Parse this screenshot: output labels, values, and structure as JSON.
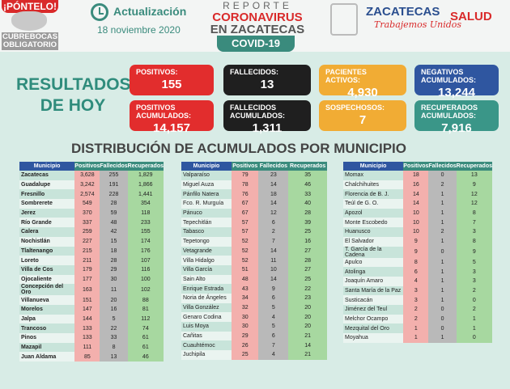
{
  "header": {
    "badge_top": "¡PÓNTELO!",
    "badge_bottom": "CUBREBOCAS OBLIGATORIO",
    "update_label": "Actualización",
    "date": "18 noviembre 2020",
    "report_1": "REPORTE",
    "report_2": "CORONAVIRUS",
    "report_3": "EN ZACATECAS",
    "covid": "COVID-19",
    "state": "ZACATECAS",
    "slogan": "Trabajemos Unidos",
    "salud": "SALUD"
  },
  "results_title": "RESULTADOS DE HOY",
  "cards": {
    "positivos": {
      "label": "POSITIVOS:",
      "value": "155"
    },
    "fallecidos": {
      "label": "FALLECIDOS:",
      "value": "13"
    },
    "activos": {
      "label": "PACIENTES ACTIVOS:",
      "value": "4,930"
    },
    "negativos": {
      "label": "NEGATIVOS ACUMULADOS:",
      "value": "13,244"
    },
    "pos_acum": {
      "label": "POSITIVOS ACUMULADOS:",
      "value": "14,157"
    },
    "fal_acum": {
      "label": "FALLECIDOS ACUMULADOS:",
      "value": "1,311"
    },
    "sospechosos": {
      "label": "SOSPECHOSOS:",
      "value": "7"
    },
    "recuperados": {
      "label": "RECUPERADOS ACUMULADOS:",
      "value": "7,916"
    }
  },
  "dist_title": "DISTRIBUCIÓN DE ACUMULADOS POR MUNICIPIO",
  "columns": [
    "Municipio",
    "Positivos",
    "Fallecidos",
    "Recuperados"
  ],
  "table1": [
    [
      "Zacatecas",
      "3,628",
      "255",
      "1,829"
    ],
    [
      "Guadalupe",
      "3,242",
      "191",
      "1,866"
    ],
    [
      "Fresnillo",
      "2,574",
      "228",
      "1,441"
    ],
    [
      "Sombrerete",
      "549",
      "28",
      "354"
    ],
    [
      "Jerez",
      "370",
      "59",
      "118"
    ],
    [
      "Río Grande",
      "337",
      "48",
      "233"
    ],
    [
      "Calera",
      "259",
      "42",
      "155"
    ],
    [
      "Nochistlán",
      "227",
      "15",
      "174"
    ],
    [
      "Tlaltenango",
      "215",
      "18",
      "176"
    ],
    [
      "Loreto",
      "211",
      "28",
      "107"
    ],
    [
      "Villa de Cos",
      "179",
      "29",
      "116"
    ],
    [
      "Ojocaliente",
      "177",
      "30",
      "100"
    ],
    [
      "Concepción del Oro",
      "163",
      "11",
      "102"
    ],
    [
      "Villanueva",
      "151",
      "20",
      "88"
    ],
    [
      "Morelos",
      "147",
      "16",
      "81"
    ],
    [
      "Jalpa",
      "144",
      "5",
      "112"
    ],
    [
      "Trancoso",
      "133",
      "22",
      "74"
    ],
    [
      "Pinos",
      "133",
      "33",
      "61"
    ],
    [
      "Mazapil",
      "111",
      "8",
      "61"
    ],
    [
      "Juan Aldama",
      "85",
      "13",
      "46"
    ]
  ],
  "table2": [
    [
      "Valparaíso",
      "79",
      "23",
      "35"
    ],
    [
      "Miguel Auza",
      "78",
      "14",
      "46"
    ],
    [
      "Pánfilo Natera",
      "76",
      "18",
      "33"
    ],
    [
      "Fco. R. Murguía",
      "67",
      "14",
      "40"
    ],
    [
      "Pánuco",
      "67",
      "12",
      "28"
    ],
    [
      "Tepechitlán",
      "57",
      "6",
      "39"
    ],
    [
      "Tabasco",
      "57",
      "2",
      "25"
    ],
    [
      "Tepetongo",
      "52",
      "7",
      "16"
    ],
    [
      "Vetagrande",
      "52",
      "14",
      "27"
    ],
    [
      "Villa Hidalgo",
      "52",
      "11",
      "28"
    ],
    [
      "Villa García",
      "51",
      "10",
      "27"
    ],
    [
      "Sain Alto",
      "48",
      "14",
      "25"
    ],
    [
      "Enrique Estrada",
      "43",
      "9",
      "22"
    ],
    [
      "Noria de Ángeles",
      "34",
      "6",
      "23"
    ],
    [
      "Villa González",
      "32",
      "5",
      "20"
    ],
    [
      "Genaro Codina",
      "30",
      "4",
      "20"
    ],
    [
      "Luis Moya",
      "30",
      "5",
      "20"
    ],
    [
      "Cañitas",
      "29",
      "6",
      "21"
    ],
    [
      "Cuauhtémoc",
      "26",
      "7",
      "14"
    ],
    [
      "Juchipila",
      "25",
      "4",
      "21"
    ]
  ],
  "table3": [
    [
      "Momax",
      "18",
      "0",
      "13"
    ],
    [
      "Chalchihuites",
      "16",
      "2",
      "9"
    ],
    [
      "Florencia de B. J.",
      "14",
      "1",
      "12"
    ],
    [
      "Teúl de G. O.",
      "14",
      "1",
      "12"
    ],
    [
      "Apozol",
      "10",
      "1",
      "8"
    ],
    [
      "Monte Escobedo",
      "10",
      "1",
      "7"
    ],
    [
      "Huanusco",
      "10",
      "2",
      "3"
    ],
    [
      "El Salvador",
      "9",
      "1",
      "8"
    ],
    [
      "T. García de la Cadena",
      "9",
      "0",
      "9"
    ],
    [
      "Apulco",
      "8",
      "1",
      "5"
    ],
    [
      "Atolinga",
      "6",
      "1",
      "3"
    ],
    [
      "Joaquín Amaro",
      "4",
      "1",
      "3"
    ],
    [
      "Santa María de la Paz",
      "3",
      "1",
      "2"
    ],
    [
      "Susticacán",
      "3",
      "1",
      "0"
    ],
    [
      "Jiménez del Teul",
      "2",
      "0",
      "2"
    ],
    [
      "Melchor Ocampo",
      "2",
      "0",
      "1"
    ],
    [
      "Mezquital del Oro",
      "1",
      "0",
      "1"
    ],
    [
      "Moyahua",
      "1",
      "1",
      "0"
    ]
  ]
}
